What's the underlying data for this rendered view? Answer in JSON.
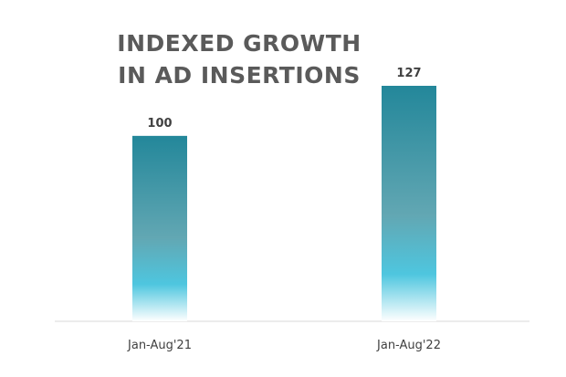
{
  "chart_data": {
    "type": "bar",
    "title": "INDEXED GROWTH IN AD INSERTIONS",
    "categories": [
      "Jan-Aug'21",
      "Jan-Aug'22"
    ],
    "values": [
      100,
      127
    ],
    "color": "#23879a"
  }
}
